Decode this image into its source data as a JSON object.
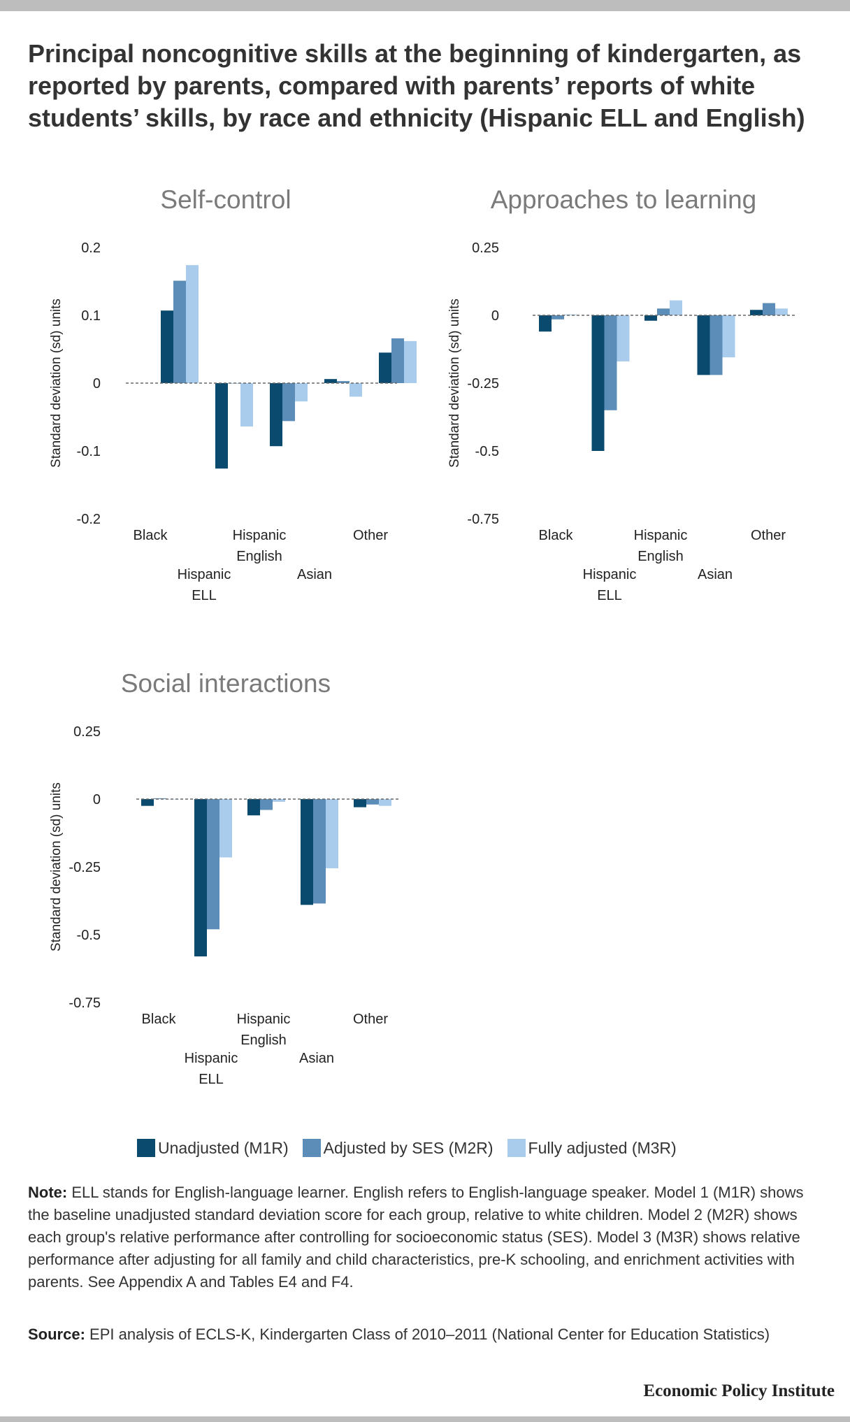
{
  "title": "Principal noncognitive skills at the beginning of kindergarten, as reported by parents, compared with parents’ reports of white students’ skills, by race and ethnicity (Hispanic ELL and English)",
  "legend": [
    {
      "label": "Unadjusted (M1R)",
      "color": "#0b4a6f"
    },
    {
      "label": "Adjusted by SES (M2R)",
      "color": "#5b8db8"
    },
    {
      "label": "Fully adjusted (M3R)",
      "color": "#a9cbec"
    }
  ],
  "note": {
    "label": "Note:",
    "text": " ELL stands for English-language learner. English refers to English-language speaker. Model 1 (M1R) shows the baseline unadjusted standard deviation score for each group, relative to white children. Model 2 (M2R) shows each group's relative performance after controlling for socioeconomic status (SES). Model 3 (M3R) shows relative performance after adjusting for all family and child characteristics, pre-K schooling, and enrichment activities with parents. See Appendix A and Tables E4 and F4."
  },
  "source": {
    "label": "Source:",
    "text": " EPI analysis of ECLS-K, Kindergarten Class of 2010–2011 (National Center for Education Statistics)"
  },
  "brand": "Economic Policy Institute",
  "chart_data": [
    {
      "type": "bar",
      "title": "Self-control",
      "ylabel": "Standard deviation (sd) units",
      "ylim": [
        -0.2,
        0.2
      ],
      "yticks": [
        "0.2",
        "0.1",
        "0",
        "-0.1",
        "-0.2"
      ],
      "categories": [
        "Black",
        "Hispanic ELL",
        "Hispanic English",
        "Asian",
        "Other"
      ],
      "series": [
        {
          "name": "Unadjusted (M1R)",
          "values": [
            0.107,
            -0.126,
            -0.093,
            0.006,
            0.045
          ]
        },
        {
          "name": "Adjusted by SES (M2R)",
          "values": [
            0.151,
            0.0,
            -0.056,
            0.003,
            0.066
          ]
        },
        {
          "name": "Fully adjusted (M3R)",
          "values": [
            0.174,
            -0.064,
            -0.027,
            -0.02,
            0.062
          ]
        }
      ]
    },
    {
      "type": "bar",
      "title": "Approaches to learning",
      "ylabel": "Standard deviation (sd) units",
      "ylim": [
        -0.75,
        0.25
      ],
      "yticks": [
        "0.25",
        "0",
        "-0.25",
        "-0.5",
        "-0.75"
      ],
      "categories": [
        "Black",
        "Hispanic ELL",
        "Hispanic English",
        "Asian",
        "Other"
      ],
      "series": [
        {
          "name": "Unadjusted (M1R)",
          "values": [
            -0.06,
            -0.5,
            -0.02,
            -0.22,
            0.02
          ]
        },
        {
          "name": "Adjusted by SES (M2R)",
          "values": [
            -0.015,
            -0.35,
            0.025,
            -0.22,
            0.045
          ]
        },
        {
          "name": "Fully adjusted (M3R)",
          "values": [
            0.003,
            -0.17,
            0.055,
            -0.155,
            0.025
          ]
        }
      ]
    },
    {
      "type": "bar",
      "title": "Social interactions",
      "ylabel": "Standard deviation (sd) units",
      "ylim": [
        -0.75,
        0.25
      ],
      "yticks": [
        "0.25",
        "0",
        "-0.25",
        "-0.5",
        "-0.75"
      ],
      "categories": [
        "Black",
        "Hispanic ELL",
        "Hispanic English",
        "Asian",
        "Other"
      ],
      "series": [
        {
          "name": "Unadjusted (M1R)",
          "values": [
            -0.025,
            -0.58,
            -0.06,
            -0.39,
            -0.03
          ]
        },
        {
          "name": "Adjusted by SES (M2R)",
          "values": [
            0.003,
            -0.48,
            -0.04,
            -0.385,
            -0.02
          ]
        },
        {
          "name": "Fully adjusted (M3R)",
          "values": [
            0.0,
            -0.215,
            -0.01,
            -0.255,
            -0.025
          ]
        }
      ]
    }
  ]
}
